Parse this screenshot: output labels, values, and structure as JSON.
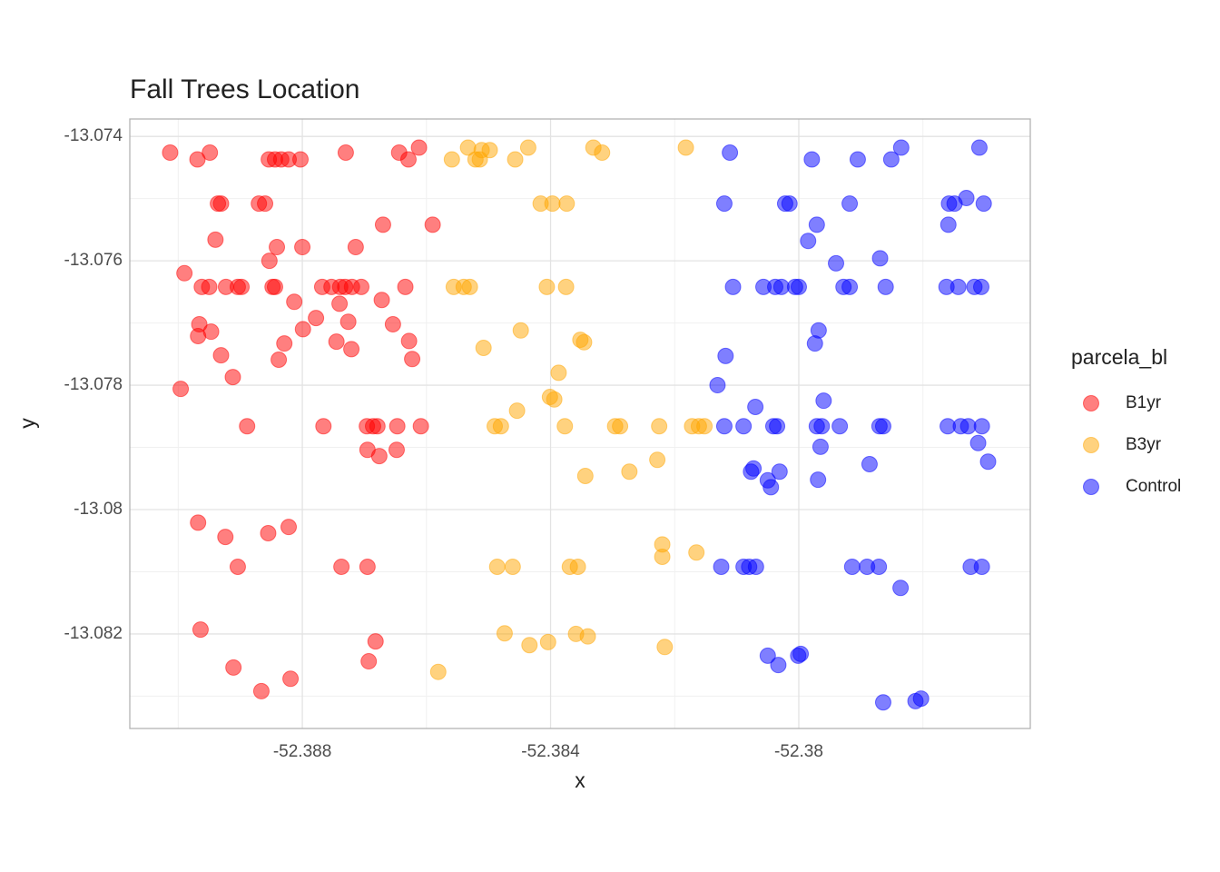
{
  "chart_data": {
    "type": "scatter",
    "title": "Fall Trees Location",
    "x_label": "x",
    "y_label": "y",
    "legend_title": "parcela_bl",
    "legend": "right",
    "grid": true,
    "xlim": [
      -52.39078,
      -52.37627
    ],
    "ylim": [
      -13.08352,
      -13.07372
    ],
    "xticks": [
      -52.388,
      -52.384,
      -52.38
    ],
    "yticks": [
      -13.074,
      -13.076,
      -13.078,
      -13.08,
      -13.082
    ],
    "series": [
      {
        "name": "B1yr",
        "color": "#FF0000",
        "x": [
          -52.39013,
          -52.38969,
          -52.38949,
          -52.38936,
          -52.38931,
          -52.3894,
          -52.3899,
          -52.38962,
          -52.3895,
          -52.38923,
          -52.38904,
          -52.38898,
          -52.38966,
          -52.38968,
          -52.38947,
          -52.38931,
          -52.38912,
          -52.38996,
          -52.38889,
          -52.3887,
          -52.3886,
          -52.38854,
          -52.38844,
          -52.38834,
          -52.38822,
          -52.38803,
          -52.38841,
          -52.38853,
          -52.38848,
          -52.38844,
          -52.388,
          -52.38813,
          -52.38799,
          -52.38829,
          -52.38838,
          -52.38778,
          -52.38768,
          -52.38753,
          -52.38739,
          -52.38731,
          -52.3872,
          -52.3874,
          -52.38726,
          -52.38745,
          -52.38721,
          -52.38714,
          -52.3873,
          -52.38766,
          -52.38705,
          -52.38696,
          -52.38686,
          -52.38679,
          -52.38695,
          -52.38676,
          -52.38648,
          -52.3867,
          -52.38672,
          -52.38654,
          -52.38644,
          -52.38629,
          -52.38612,
          -52.38634,
          -52.38628,
          -52.38623,
          -52.38647,
          -52.38609,
          -52.3859,
          -52.38968,
          -52.38924,
          -52.38904,
          -52.38855,
          -52.38822,
          -52.38737,
          -52.38695,
          -52.38964,
          -52.38911,
          -52.38866,
          -52.38819,
          -52.38693,
          -52.38682
        ],
        "y": [
          -13.07426,
          -13.07437,
          -13.07426,
          -13.07508,
          -13.07508,
          -13.07566,
          -13.0762,
          -13.07642,
          -13.07642,
          -13.07642,
          -13.07642,
          -13.07642,
          -13.07702,
          -13.07721,
          -13.07714,
          -13.07752,
          -13.07787,
          -13.07806,
          -13.07866,
          -13.07508,
          -13.07508,
          -13.07437,
          -13.07437,
          -13.07437,
          -13.07437,
          -13.07437,
          -13.07578,
          -13.076,
          -13.07642,
          -13.07642,
          -13.07578,
          -13.07666,
          -13.0771,
          -13.07733,
          -13.07759,
          -13.07692,
          -13.07642,
          -13.07642,
          -13.07642,
          -13.07642,
          -13.07642,
          -13.07669,
          -13.07698,
          -13.0773,
          -13.07742,
          -13.07578,
          -13.07426,
          -13.07866,
          -13.07642,
          -13.07866,
          -13.07866,
          -13.07866,
          -13.07904,
          -13.07914,
          -13.07904,
          -13.07542,
          -13.07663,
          -13.07702,
          -13.07426,
          -13.07437,
          -13.07418,
          -13.07642,
          -13.07729,
          -13.07758,
          -13.07866,
          -13.07866,
          -13.07542,
          -13.08021,
          -13.08044,
          -13.08092,
          -13.08038,
          -13.08028,
          -13.08092,
          -13.08092,
          -13.08193,
          -13.08254,
          -13.08292,
          -13.08272,
          -13.08244,
          -13.08212
        ]
      },
      {
        "name": "B3yr",
        "color": "#FFA500",
        "x": [
          -52.38559,
          -52.38533,
          -52.38521,
          -52.38511,
          -52.38498,
          -52.38514,
          -52.38457,
          -52.38436,
          -52.38331,
          -52.38317,
          -52.38182,
          -52.38416,
          -52.38397,
          -52.38374,
          -52.38556,
          -52.3854,
          -52.3853,
          -52.38406,
          -52.38375,
          -52.38448,
          -52.38508,
          -52.38352,
          -52.38346,
          -52.38387,
          -52.38401,
          -52.38394,
          -52.38454,
          -52.3849,
          -52.3848,
          -52.38377,
          -52.38296,
          -52.38288,
          -52.38225,
          -52.38172,
          -52.38161,
          -52.38152,
          -52.38344,
          -52.38273,
          -52.38228,
          -52.3822,
          -52.3822,
          -52.38165,
          -52.38486,
          -52.38461,
          -52.38369,
          -52.38356,
          -52.38474,
          -52.38434,
          -52.38404,
          -52.38359,
          -52.3834,
          -52.38216,
          -52.38581
        ],
        "y": [
          -13.07437,
          -13.07418,
          -13.07437,
          -13.07422,
          -13.07422,
          -13.07437,
          -13.07437,
          -13.07418,
          -13.07418,
          -13.07426,
          -13.07418,
          -13.07508,
          -13.07508,
          -13.07508,
          -13.07642,
          -13.07642,
          -13.07642,
          -13.07642,
          -13.07642,
          -13.07712,
          -13.0774,
          -13.07727,
          -13.07731,
          -13.0778,
          -13.07819,
          -13.07823,
          -13.07841,
          -13.07866,
          -13.07866,
          -13.07866,
          -13.07866,
          -13.07866,
          -13.07866,
          -13.07866,
          -13.07866,
          -13.07866,
          -13.07946,
          -13.07939,
          -13.0792,
          -13.08056,
          -13.08076,
          -13.08069,
          -13.08092,
          -13.08092,
          -13.08092,
          -13.08092,
          -13.08199,
          -13.08218,
          -13.08213,
          -13.082,
          -13.08204,
          -13.08221,
          -13.08261
        ]
      },
      {
        "name": "Control",
        "color": "#0000FF",
        "x": [
          -52.38111,
          -52.3812,
          -52.38022,
          -52.38015,
          -52.37918,
          -52.37979,
          -52.37905,
          -52.37851,
          -52.37835,
          -52.37709,
          -52.37971,
          -52.37985,
          -52.3794,
          -52.37869,
          -52.37758,
          -52.37749,
          -52.3773,
          -52.37702,
          -52.37759,
          -52.38106,
          -52.38057,
          -52.38038,
          -52.38028,
          -52.38006,
          -52.38,
          -52.37928,
          -52.37918,
          -52.3786,
          -52.37762,
          -52.37743,
          -52.37717,
          -52.37706,
          -52.37968,
          -52.37974,
          -52.38118,
          -52.38131,
          -52.3807,
          -52.3796,
          -52.3812,
          -52.38089,
          -52.38041,
          -52.38035,
          -52.37971,
          -52.37963,
          -52.37934,
          -52.3787,
          -52.37864,
          -52.3776,
          -52.37739,
          -52.37727,
          -52.37705,
          -52.37965,
          -52.37711,
          -52.37695,
          -52.38073,
          -52.38077,
          -52.3805,
          -52.38045,
          -52.38031,
          -52.37969,
          -52.37886,
          -52.38125,
          -52.38089,
          -52.3808,
          -52.38069,
          -52.37914,
          -52.3789,
          -52.37871,
          -52.37723,
          -52.37705,
          -52.37836,
          -52.3805,
          -52.38033,
          -52.38001,
          -52.37997,
          -52.37864,
          -52.37812,
          -52.37803
        ],
        "y": [
          -13.07426,
          -13.07508,
          -13.07508,
          -13.07508,
          -13.07508,
          -13.07437,
          -13.07437,
          -13.07437,
          -13.07418,
          -13.07418,
          -13.07542,
          -13.07568,
          -13.07604,
          -13.07596,
          -13.07508,
          -13.07508,
          -13.07499,
          -13.07508,
          -13.07542,
          -13.07642,
          -13.07642,
          -13.07642,
          -13.07642,
          -13.07642,
          -13.07642,
          -13.07642,
          -13.07642,
          -13.07642,
          -13.07642,
          -13.07642,
          -13.07642,
          -13.07642,
          -13.07712,
          -13.07733,
          -13.07753,
          -13.078,
          -13.07835,
          -13.07825,
          -13.07866,
          -13.07866,
          -13.07866,
          -13.07866,
          -13.07866,
          -13.07866,
          -13.07866,
          -13.07866,
          -13.07866,
          -13.07866,
          -13.07866,
          -13.07866,
          -13.07866,
          -13.07899,
          -13.07893,
          -13.07923,
          -13.07934,
          -13.07939,
          -13.07953,
          -13.07964,
          -13.07939,
          -13.07952,
          -13.07927,
          -13.08092,
          -13.08092,
          -13.08092,
          -13.08092,
          -13.08092,
          -13.08092,
          -13.08092,
          -13.08092,
          -13.08092,
          -13.08126,
          -13.08235,
          -13.0825,
          -13.08235,
          -13.08232,
          -13.0831,
          -13.08308,
          -13.08304
        ]
      }
    ]
  }
}
